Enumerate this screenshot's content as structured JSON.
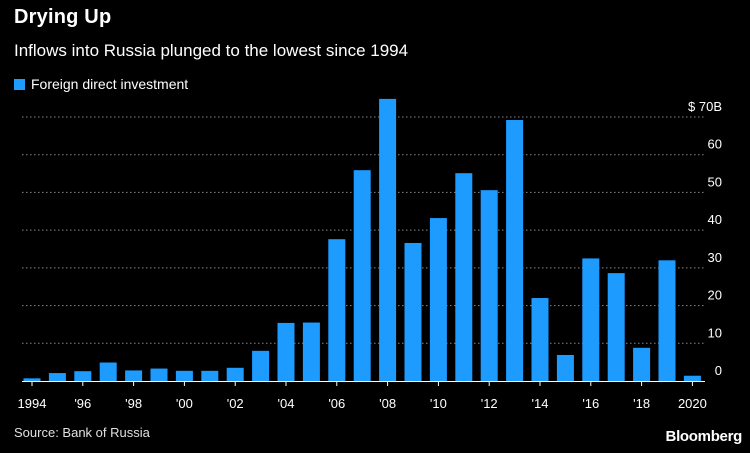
{
  "header": {
    "title": "Drying Up",
    "subtitle": "Inflows into Russia plunged to the lowest since 1994"
  },
  "legend": {
    "label": "Foreign direct investment"
  },
  "footer": {
    "source": "Source: Bank of Russia",
    "brand": "Bloomberg"
  },
  "colors": {
    "bar": "#1e9bff",
    "grid": "#888888",
    "axis": "#ffffff",
    "background": "#000000"
  },
  "chart_data": {
    "type": "bar",
    "title": "Drying Up",
    "subtitle": "Inflows into Russia plunged to the lowest since 1994",
    "xlabel": "",
    "ylabel": "$ Billion",
    "ylim": [
      0,
      70
    ],
    "grid": true,
    "legend": {
      "position": "top-left",
      "entries": [
        "Foreign direct investment"
      ]
    },
    "y_ticks": [
      0,
      10,
      20,
      30,
      40,
      50,
      60,
      70
    ],
    "y_tick_labels": [
      "0",
      "10",
      "20",
      "30",
      "40",
      "50",
      "60",
      "$ 70B"
    ],
    "x_tick_labels": [
      {
        "year": 1994,
        "label": "1994"
      },
      {
        "year": 1996,
        "label": "'96"
      },
      {
        "year": 1998,
        "label": "'98"
      },
      {
        "year": 2000,
        "label": "'00"
      },
      {
        "year": 2002,
        "label": "'02"
      },
      {
        "year": 2004,
        "label": "'04"
      },
      {
        "year": 2006,
        "label": "'06"
      },
      {
        "year": 2008,
        "label": "'08"
      },
      {
        "year": 2010,
        "label": "'10"
      },
      {
        "year": 2012,
        "label": "'12"
      },
      {
        "year": 2014,
        "label": "'14"
      },
      {
        "year": 2016,
        "label": "'16"
      },
      {
        "year": 2018,
        "label": "'18"
      },
      {
        "year": 2020,
        "label": "2020"
      }
    ],
    "categories": [
      1994,
      1995,
      1996,
      1997,
      1998,
      1999,
      2000,
      2001,
      2002,
      2003,
      2004,
      2005,
      2006,
      2007,
      2008,
      2009,
      2010,
      2011,
      2012,
      2013,
      2014,
      2015,
      2016,
      2017,
      2018,
      2019,
      2020
    ],
    "series": [
      {
        "name": "Foreign direct investment",
        "values": [
          0.7,
          2.1,
          2.6,
          4.9,
          2.8,
          3.3,
          2.7,
          2.7,
          3.5,
          8.0,
          15.4,
          15.5,
          37.6,
          55.9,
          74.8,
          36.6,
          43.2,
          55.1,
          50.6,
          69.2,
          22.0,
          6.9,
          32.5,
          28.6,
          8.8,
          32.0,
          1.4
        ]
      }
    ]
  }
}
